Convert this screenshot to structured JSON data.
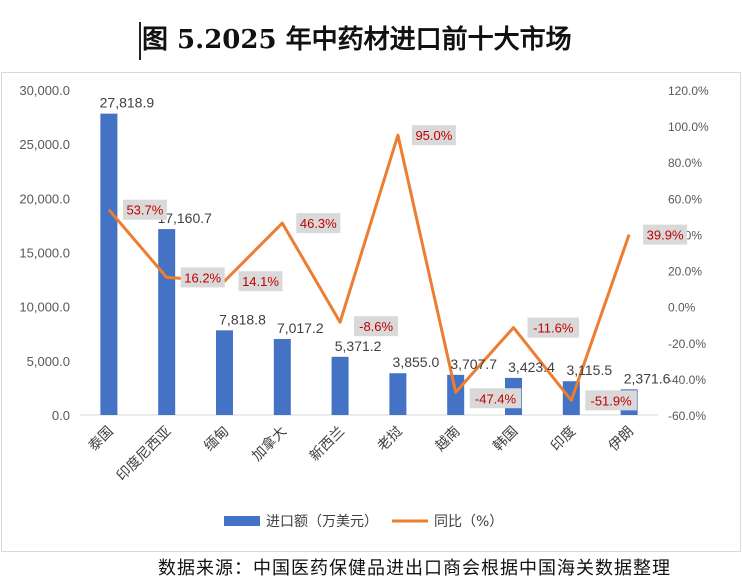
{
  "title": "图 5.2025 年中药材进口前十大市场",
  "source": "数据来源：中国医药保健品进出口商会根据中国海关数据整理",
  "chart_data": {
    "type": "bar+line",
    "categories": [
      "泰国",
      "印度尼西亚",
      "缅甸",
      "加拿大",
      "新西兰",
      "老挝",
      "越南",
      "韩国",
      "印度",
      "伊朗"
    ],
    "series": [
      {
        "name": "进口额（万美元）",
        "type": "bar",
        "axis": "left",
        "color": "#4472c4",
        "values": [
          27818.9,
          17160.7,
          7818.8,
          7017.2,
          5371.2,
          3855.0,
          3707.7,
          3423.4,
          3115.5,
          2371.6
        ],
        "labels": [
          "27,818.9",
          "17,160.7",
          "7,818.8",
          "7,017.2",
          "5,371.2",
          "3,855.0",
          "3,707.7",
          "3,423.4",
          "3,115.5",
          "2,371.6"
        ]
      },
      {
        "name": "同比（%）",
        "type": "line",
        "axis": "right",
        "color": "#ed7d31",
        "values": [
          53.7,
          16.2,
          14.1,
          46.3,
          -8.6,
          95.0,
          -47.4,
          -11.6,
          -51.9,
          39.9
        ],
        "labels": [
          "53.7%",
          "16.2%",
          "14.1%",
          "46.3%",
          "-8.6%",
          "95.0%",
          "-47.4%",
          "-11.6%",
          "-51.9%",
          "39.9%"
        ]
      }
    ],
    "y_left": {
      "min": 0,
      "max": 30000,
      "ticks": [
        "0.0",
        "5,000.0",
        "10,000.0",
        "15,000.0",
        "20,000.0",
        "25,000.0",
        "30,000.0"
      ]
    },
    "y_right": {
      "min": -60,
      "max": 120,
      "ticks": [
        "-60.0%",
        "-40.0%",
        "-20.0%",
        "0.0%",
        "20.0%",
        "40.0%",
        "60.0%",
        "80.0%",
        "100.0%",
        "120.0%"
      ]
    },
    "legend": {
      "position": "bottom",
      "items": [
        "进口额（万美元）",
        "同比（%）"
      ]
    },
    "colors": {
      "bar": "#4472c4",
      "line": "#ed7d31",
      "label_bg": "#d9d9d9",
      "label_text": "#c00000"
    }
  }
}
